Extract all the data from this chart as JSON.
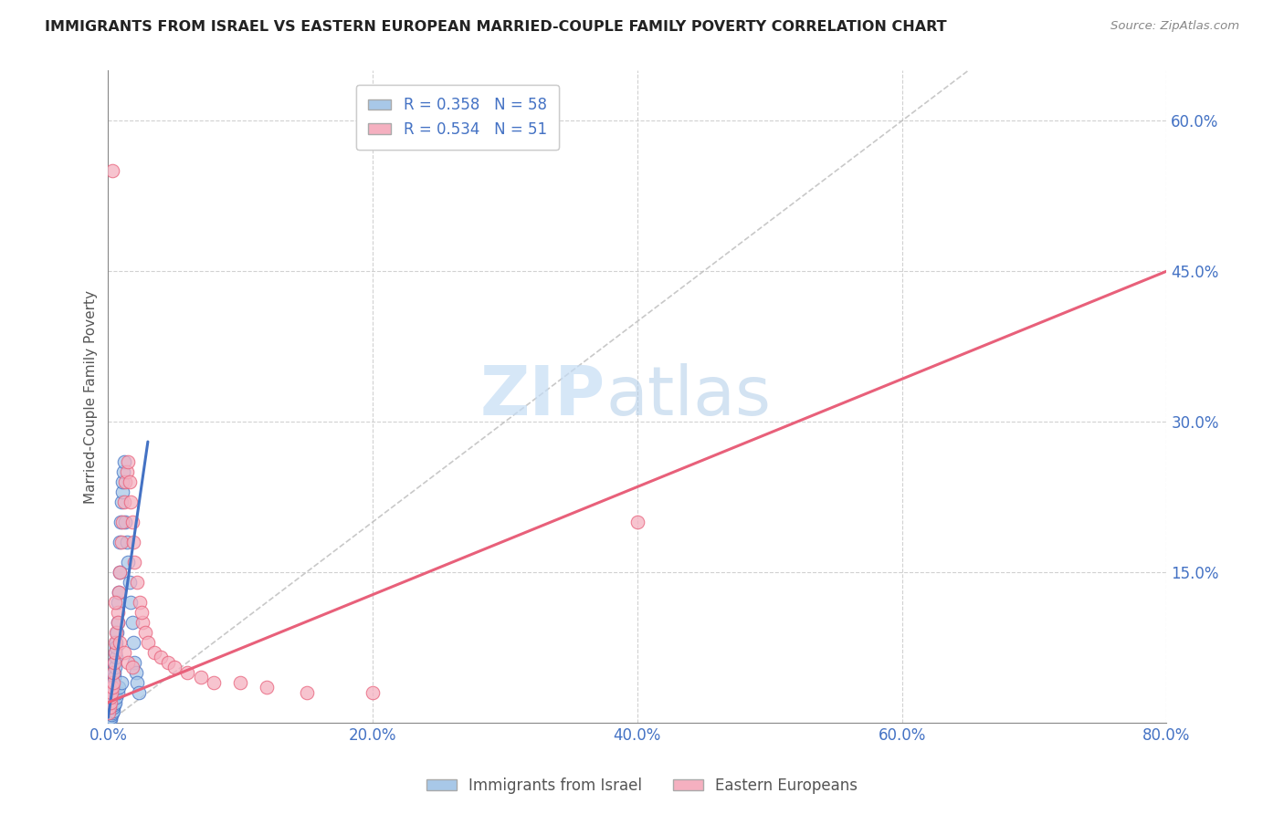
{
  "title": "IMMIGRANTS FROM ISRAEL VS EASTERN EUROPEAN MARRIED-COUPLE FAMILY POVERTY CORRELATION CHART",
  "source": "Source: ZipAtlas.com",
  "xlabel_ticks": [
    "0.0%",
    "20.0%",
    "40.0%",
    "60.0%",
    "80.0%"
  ],
  "xlabel_vals": [
    0.0,
    20.0,
    40.0,
    60.0,
    80.0
  ],
  "ylabel_ticks": [
    "15.0%",
    "30.0%",
    "45.0%",
    "60.0%"
  ],
  "ylabel_vals": [
    15.0,
    30.0,
    45.0,
    60.0
  ],
  "xlim": [
    0,
    80
  ],
  "ylim": [
    0,
    65
  ],
  "legend1_label": "R = 0.358   N = 58",
  "legend2_label": "R = 0.534   N = 51",
  "legend_bottom1": "Immigrants from Israel",
  "legend_bottom2": "Eastern Europeans",
  "color_blue": "#a8c8e8",
  "color_pink": "#f5b0c0",
  "line_blue": "#4472c4",
  "line_pink": "#e8607a",
  "watermark_zip": "ZIP",
  "watermark_atlas": "atlas",
  "bg_color": "#ffffff",
  "grid_color": "#cccccc",
  "title_color": "#222222",
  "tick_color": "#4472c4",
  "blue_scatter_x": [
    0.05,
    0.08,
    0.1,
    0.12,
    0.15,
    0.18,
    0.2,
    0.22,
    0.25,
    0.28,
    0.3,
    0.32,
    0.35,
    0.38,
    0.4,
    0.42,
    0.45,
    0.48,
    0.5,
    0.55,
    0.58,
    0.6,
    0.62,
    0.65,
    0.7,
    0.75,
    0.8,
    0.85,
    0.9,
    0.95,
    1.0,
    1.05,
    1.1,
    1.15,
    1.2,
    1.3,
    1.4,
    1.5,
    1.6,
    1.7,
    1.8,
    1.9,
    2.0,
    2.1,
    2.2,
    2.3,
    0.15,
    0.2,
    0.25,
    0.3,
    0.35,
    0.4,
    0.45,
    0.5,
    0.6,
    0.7,
    0.8,
    1.0
  ],
  "blue_scatter_y": [
    0.5,
    1.0,
    0.8,
    1.5,
    1.2,
    2.0,
    1.8,
    2.5,
    2.2,
    3.0,
    2.8,
    3.5,
    3.2,
    4.0,
    3.8,
    5.0,
    4.5,
    6.0,
    5.5,
    7.0,
    6.5,
    8.0,
    7.5,
    9.0,
    10.0,
    12.0,
    13.0,
    15.0,
    18.0,
    20.0,
    22.0,
    23.0,
    24.0,
    25.0,
    26.0,
    20.0,
    18.0,
    16.0,
    14.0,
    12.0,
    10.0,
    8.0,
    6.0,
    5.0,
    4.0,
    3.0,
    0.3,
    0.5,
    0.8,
    1.0,
    1.2,
    1.5,
    1.8,
    2.0,
    2.5,
    3.0,
    3.5,
    4.0
  ],
  "pink_scatter_x": [
    0.05,
    0.1,
    0.15,
    0.2,
    0.25,
    0.3,
    0.35,
    0.4,
    0.45,
    0.5,
    0.55,
    0.6,
    0.7,
    0.8,
    0.9,
    1.0,
    1.1,
    1.2,
    1.3,
    1.4,
    1.5,
    1.6,
    1.7,
    1.8,
    1.9,
    2.0,
    2.2,
    2.4,
    2.6,
    2.8,
    3.0,
    3.5,
    4.0,
    4.5,
    5.0,
    6.0,
    7.0,
    8.0,
    10.0,
    12.0,
    15.0,
    20.0,
    40.0,
    0.3,
    0.5,
    0.7,
    0.9,
    1.2,
    1.5,
    1.8,
    2.5
  ],
  "pink_scatter_y": [
    1.0,
    1.5,
    2.0,
    2.5,
    3.0,
    3.5,
    4.0,
    5.0,
    6.0,
    7.0,
    8.0,
    9.0,
    11.0,
    13.0,
    15.0,
    18.0,
    20.0,
    22.0,
    24.0,
    25.0,
    26.0,
    24.0,
    22.0,
    20.0,
    18.0,
    16.0,
    14.0,
    12.0,
    10.0,
    9.0,
    8.0,
    7.0,
    6.5,
    6.0,
    5.5,
    5.0,
    4.5,
    4.0,
    4.0,
    3.5,
    3.0,
    3.0,
    20.0,
    55.0,
    12.0,
    10.0,
    8.0,
    7.0,
    6.0,
    5.5,
    11.0
  ],
  "blue_line_x": [
    0.0,
    3.0
  ],
  "blue_line_y": [
    0.5,
    28.0
  ],
  "pink_line_x": [
    0.0,
    80.0
  ],
  "pink_line_y": [
    2.0,
    45.0
  ],
  "diag_line_x": [
    0.0,
    65.0
  ],
  "diag_line_y": [
    0.0,
    65.0
  ]
}
